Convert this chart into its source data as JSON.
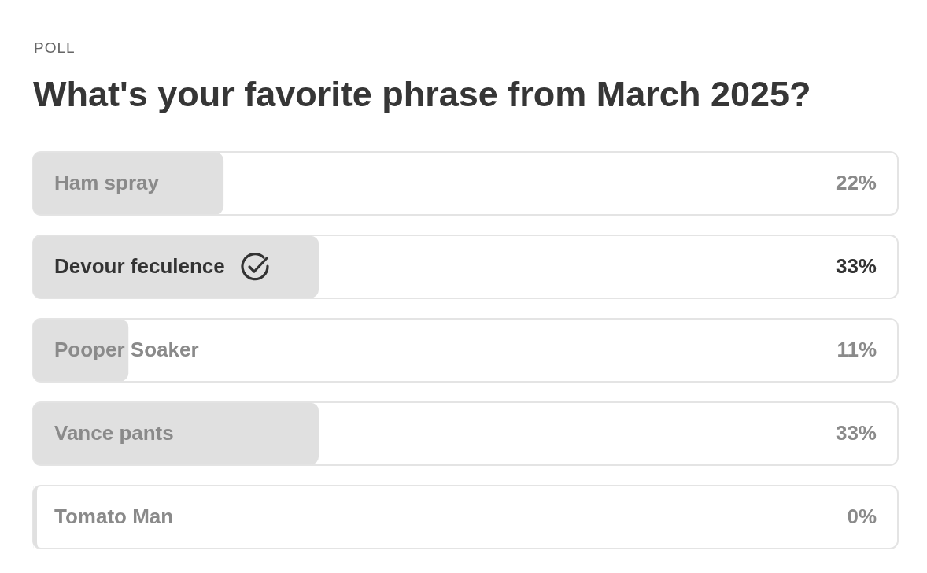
{
  "chart_data": {
    "type": "bar",
    "orientation": "horizontal",
    "subtitle": "POLL",
    "title": "What's your favorite phrase from March 2025?",
    "categories": [
      "Ham spray",
      "Devour feculence",
      "Pooper Soaker",
      "Vance pants",
      "Tomato Man"
    ],
    "values": [
      22,
      33,
      11,
      33,
      0
    ],
    "value_labels": [
      "22%",
      "33%",
      "11%",
      "33%",
      "0%"
    ],
    "color": "#e0e0e0",
    "xlim": [
      0,
      100
    ],
    "tick_labels": false,
    "legend": false
  }
}
